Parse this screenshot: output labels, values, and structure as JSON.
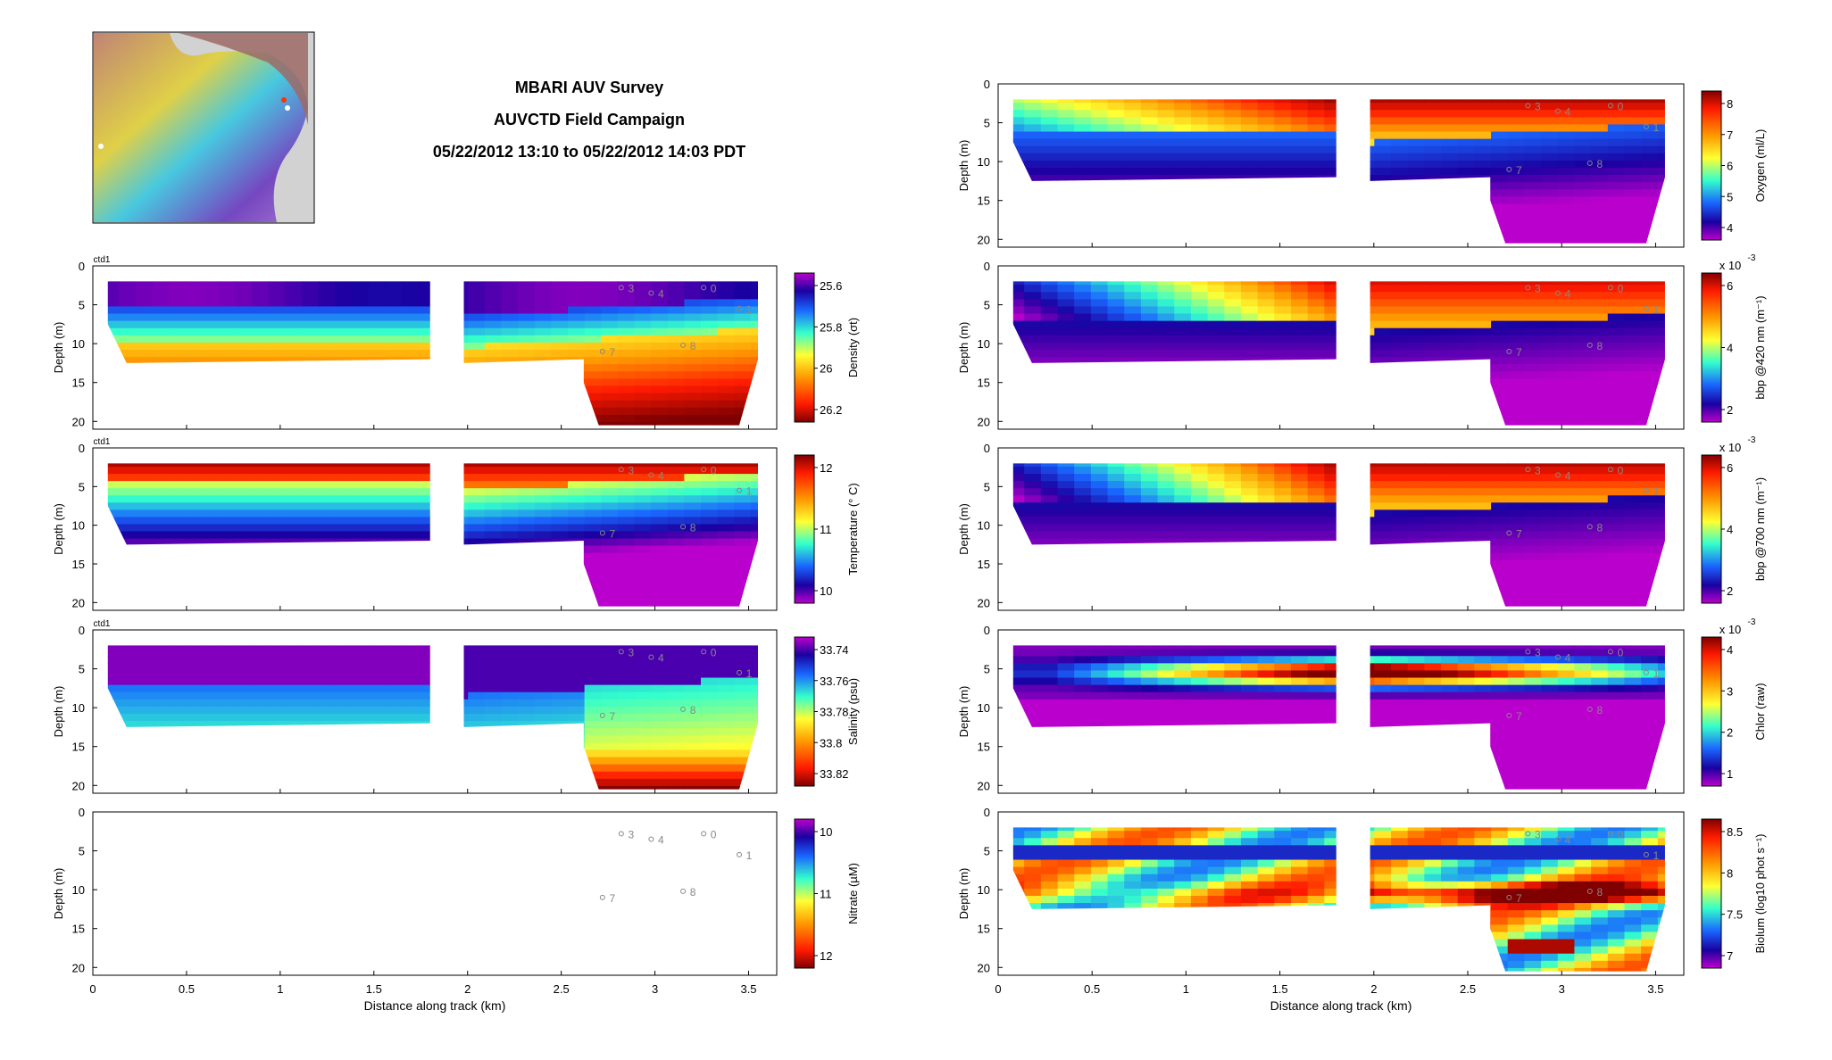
{
  "header": {
    "line1": "MBARI AUV Survey",
    "line2": "AUVCTD Field Campaign",
    "line3": "05/22/2012 13:10 to 05/22/2012 14:03 PDT"
  },
  "common": {
    "xlabel": "Distance along track (km)",
    "ylabel": "Depth (m)",
    "xticks": [
      "0",
      "0.5",
      "1",
      "1.5",
      "2",
      "2.5",
      "3",
      "3.5"
    ],
    "yticks": [
      "0",
      "5",
      "10",
      "15",
      "20"
    ],
    "ctd_label": "ctd1"
  },
  "stations": [
    {
      "label": "3",
      "x_km": 2.82,
      "depth_m": 2.8
    },
    {
      "label": "4",
      "x_km": 2.98,
      "depth_m": 3.5
    },
    {
      "label": "0",
      "x_km": 3.26,
      "depth_m": 2.8
    },
    {
      "label": "1",
      "x_km": 3.45,
      "depth_m": 5.5
    },
    {
      "label": "7",
      "x_km": 2.72,
      "depth_m": 11.0
    },
    {
      "label": "8",
      "x_km": 3.15,
      "depth_m": 10.2
    }
  ],
  "chart_data": [
    {
      "id": "density",
      "type": "heatmap",
      "column": "left",
      "row": 0,
      "colorbar_label": "Density (σt)",
      "colorbar_ticks": [
        "25.6",
        "25.8",
        "26",
        "26.2"
      ],
      "colorbar_reversed": true,
      "ctd_label": true,
      "x_range_km": [
        0,
        3.65
      ],
      "depth_range_m": [
        0,
        21
      ]
    },
    {
      "id": "temperature",
      "type": "heatmap",
      "column": "left",
      "row": 1,
      "colorbar_label": "Temperature (° C)",
      "colorbar_ticks": [
        "12",
        "11",
        "10"
      ],
      "ctd_label": true,
      "x_range_km": [
        0,
        3.65
      ],
      "depth_range_m": [
        0,
        21
      ]
    },
    {
      "id": "salinity",
      "type": "heatmap",
      "column": "left",
      "row": 2,
      "colorbar_label": "Salinity (psu)",
      "colorbar_ticks": [
        "33.74",
        "33.76",
        "33.78",
        "33.8",
        "33.82"
      ],
      "colorbar_reversed": true,
      "ctd_label": true,
      "x_range_km": [
        0,
        3.65
      ],
      "depth_range_m": [
        0,
        21
      ]
    },
    {
      "id": "nitrate",
      "type": "heatmap",
      "column": "left",
      "row": 3,
      "colorbar_label": "Nitrate (µM)",
      "colorbar_ticks": [
        "10",
        "11",
        "12"
      ],
      "colorbar_reversed": true,
      "empty": true,
      "x_range_km": [
        0,
        3.65
      ],
      "depth_range_m": [
        0,
        21
      ]
    },
    {
      "id": "oxygen",
      "type": "heatmap",
      "column": "right",
      "row": 0,
      "colorbar_label": "Oxygen (ml/L)",
      "colorbar_ticks": [
        "8",
        "7",
        "6",
        "5",
        "4"
      ],
      "x_range_km": [
        0,
        3.65
      ],
      "depth_range_m": [
        0,
        21
      ]
    },
    {
      "id": "bbp420",
      "type": "heatmap",
      "column": "right",
      "row": 1,
      "colorbar_label": "bbp @420 nm (m⁻¹)",
      "colorbar_ticks": [
        "6",
        "4",
        "2"
      ],
      "exponent_label": "x 10",
      "exponent_power": "-3",
      "x_range_km": [
        0,
        3.65
      ],
      "depth_range_m": [
        0,
        21
      ]
    },
    {
      "id": "bbp700",
      "type": "heatmap",
      "column": "right",
      "row": 2,
      "colorbar_label": "bbp @700 nm (m⁻¹)",
      "colorbar_ticks": [
        "6",
        "4",
        "2"
      ],
      "exponent_label": "x 10",
      "exponent_power": "-3",
      "x_range_km": [
        0,
        3.65
      ],
      "depth_range_m": [
        0,
        21
      ]
    },
    {
      "id": "chlor",
      "type": "heatmap",
      "column": "right",
      "row": 3,
      "colorbar_label": "Chlor (raw)",
      "colorbar_ticks": [
        "4",
        "3",
        "2",
        "1"
      ],
      "exponent_label": "x 10",
      "exponent_power": "-3",
      "x_range_km": [
        0,
        3.65
      ],
      "depth_range_m": [
        0,
        21
      ]
    },
    {
      "id": "biolum",
      "type": "heatmap",
      "column": "right",
      "row": 4,
      "colorbar_label": "Biolum (log10 phot s⁻¹)",
      "colorbar_ticks": [
        "8.5",
        "8",
        "7.5",
        "7"
      ],
      "x_range_km": [
        0,
        3.65
      ],
      "depth_range_m": [
        0,
        21
      ]
    }
  ]
}
